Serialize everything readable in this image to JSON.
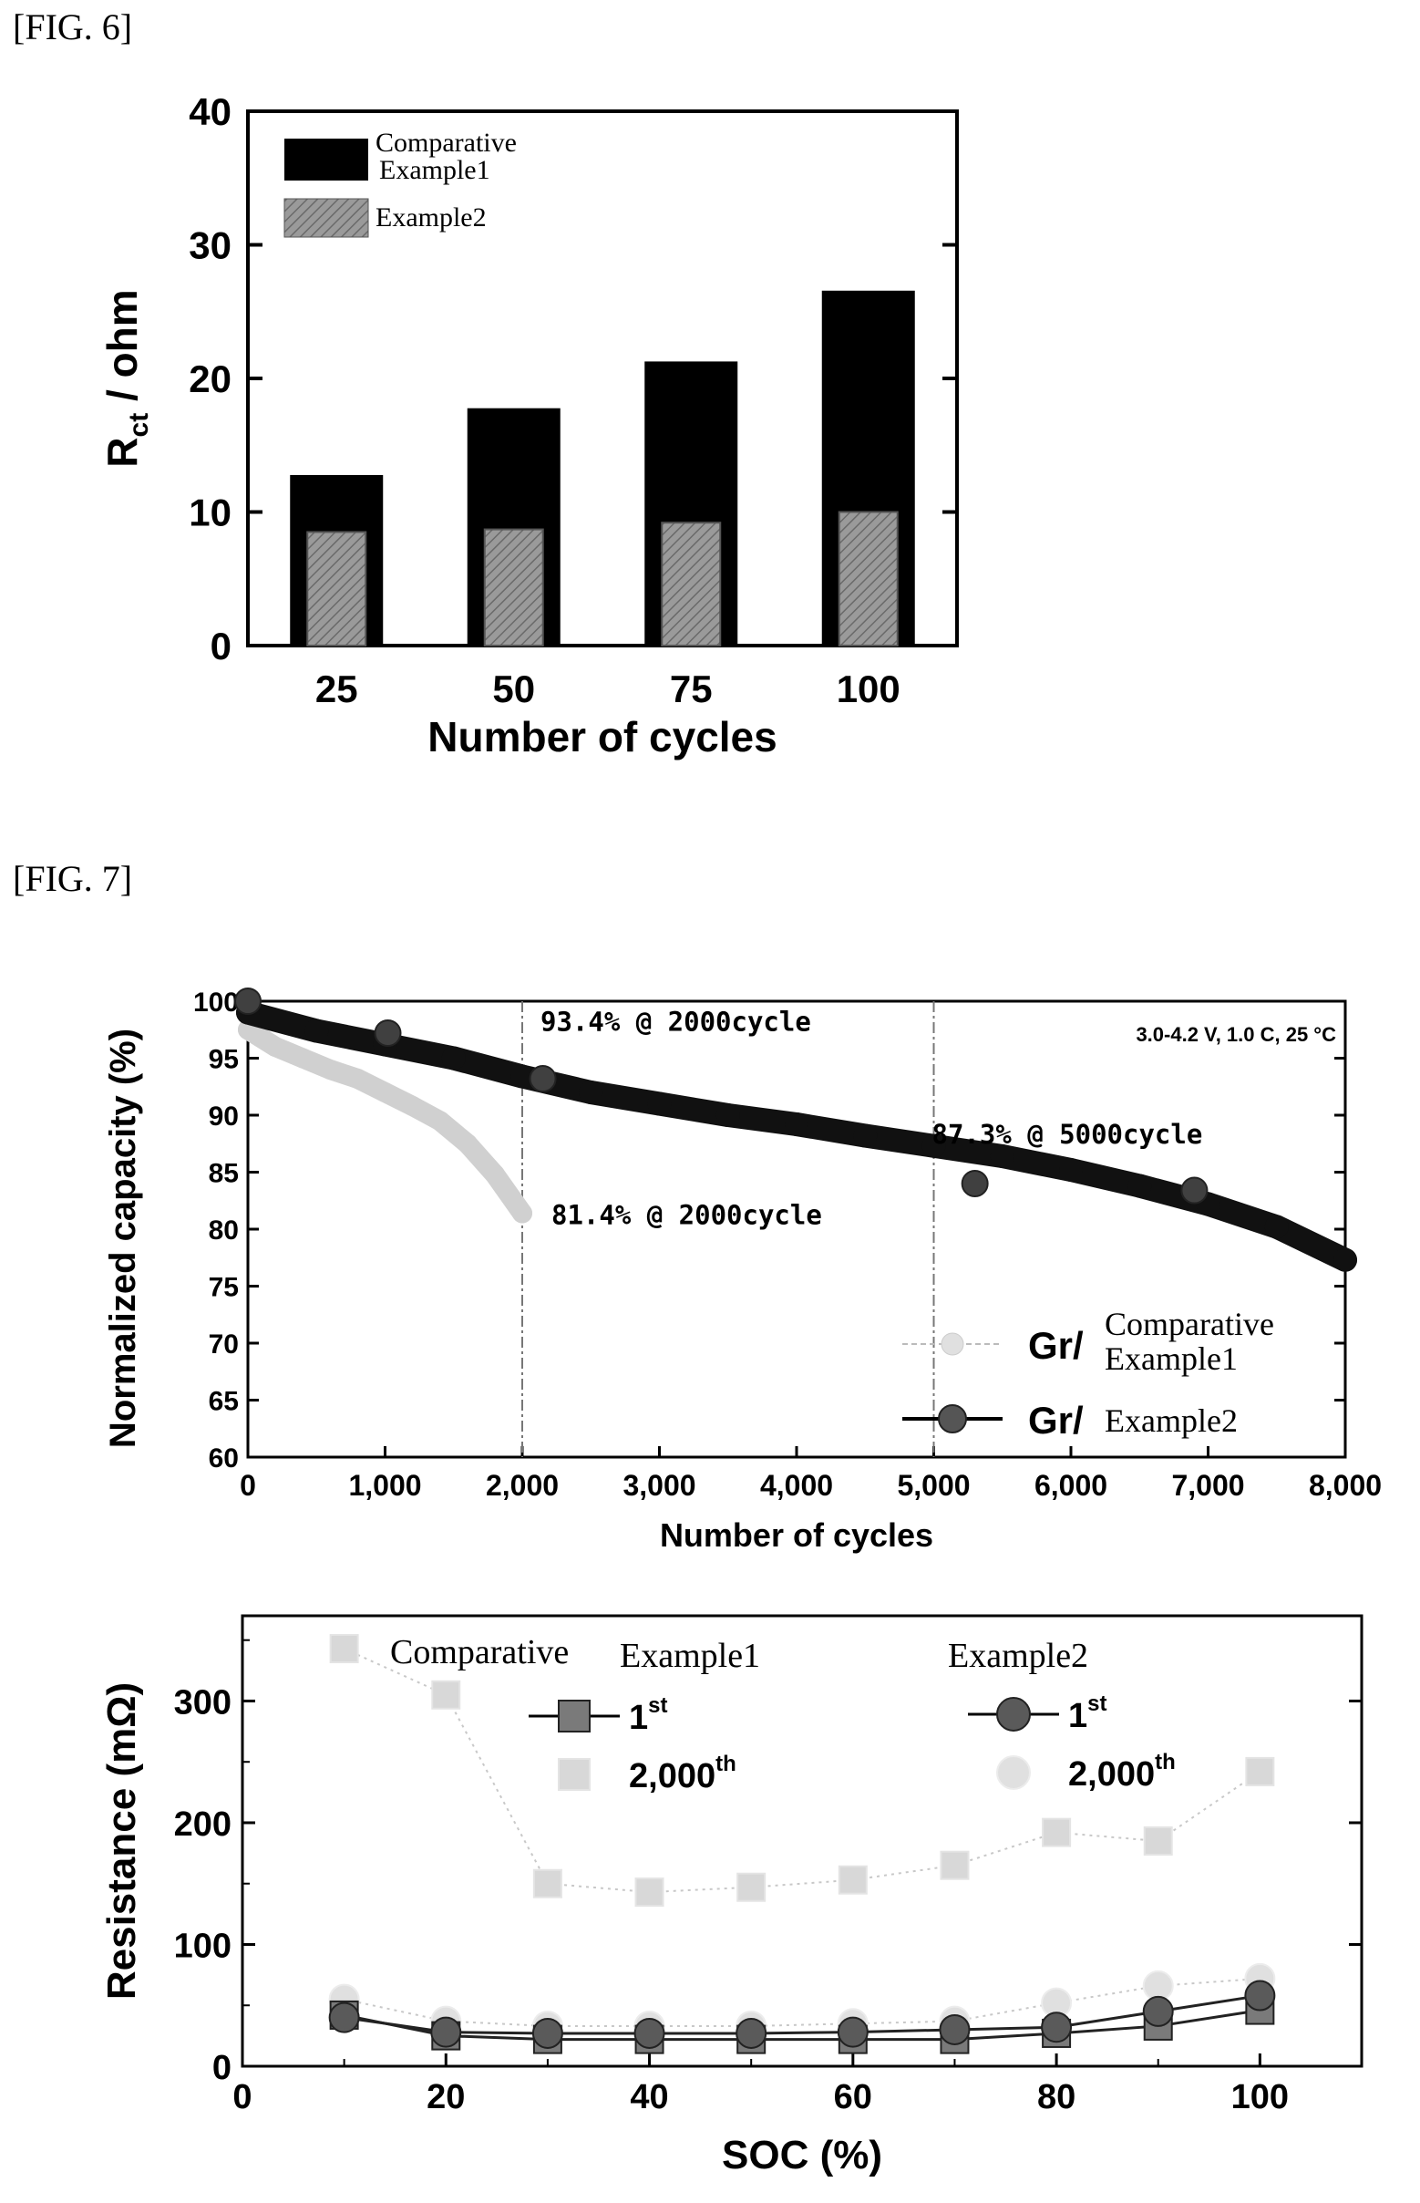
{
  "figures": [
    {
      "label": "[FIG. 6]"
    },
    {
      "label": "[FIG. 7]"
    }
  ],
  "chart_data": [
    {
      "type": "bar",
      "xlabel": "Number of cycles",
      "ylabel_main": "R",
      "ylabel_sub": "ct",
      "ylabel_rest": " / ohm",
      "ylim": [
        0,
        40
      ],
      "yticks": [
        0,
        10,
        20,
        30,
        40
      ],
      "categories": [
        "25",
        "50",
        "75",
        "100"
      ],
      "series": [
        {
          "name": "Comparative Example1",
          "name_line1": "Comparative",
          "name_line2": "Example1",
          "color": "#000000",
          "values": [
            12.7,
            17.7,
            21.2,
            26.5
          ]
        },
        {
          "name": "Example2",
          "color": "#9a9a9a",
          "values": [
            8.5,
            8.7,
            9.2,
            10.0
          ]
        }
      ],
      "legend": "top-left"
    },
    {
      "type": "scatter",
      "xlabel": "Number of cycles",
      "ylabel": "Normalized capacity (%)",
      "xlim": [
        0,
        8000
      ],
      "ylim": [
        60,
        100
      ],
      "xticks": [
        0,
        1000,
        2000,
        3000,
        4000,
        5000,
        6000,
        7000,
        8000
      ],
      "xtick_labels": [
        "0",
        "1,000",
        "2,000",
        "3,000",
        "4,000",
        "5,000",
        "6,000",
        "7,000",
        "8,000"
      ],
      "yticks": [
        60,
        65,
        70,
        75,
        80,
        85,
        90,
        95,
        100
      ],
      "condition": "3.0-4.2 V, 1.0 C, 25 °C",
      "annotations": [
        {
          "text": "93.4% @ 2000cycle",
          "x": 2000,
          "y": 93.4
        },
        {
          "text": "87.3% @ 5000cycle",
          "x": 5000,
          "y": 87.3
        },
        {
          "text": "81.4% @ 2000cycle",
          "x": 2000,
          "y": 81.4
        }
      ],
      "vlines": [
        2000,
        5000
      ],
      "series": [
        {
          "name": "Gr/ Comparative Example1",
          "prefix": "Gr/",
          "name_line1": "Comparative",
          "name_line2": "Example1",
          "color": "#d0d0d0",
          "x": [
            0,
            200,
            400,
            600,
            800,
            1000,
            1200,
            1400,
            1600,
            1800,
            2000
          ],
          "y": [
            97.5,
            96.0,
            95.0,
            94.0,
            93.2,
            92.0,
            90.8,
            89.5,
            87.5,
            84.8,
            81.4
          ]
        },
        {
          "name": "Gr/ Example2",
          "prefix": "Gr/",
          "name_line1": "Example2",
          "color": "#404040",
          "x": [
            0,
            500,
            1000,
            1500,
            2000,
            2500,
            3000,
            3500,
            4000,
            4500,
            5000,
            5500,
            6000,
            6500,
            7000,
            7500,
            8000
          ],
          "y": [
            99.0,
            97.4,
            96.2,
            95.0,
            93.4,
            92.0,
            91.0,
            90.0,
            89.2,
            88.2,
            87.3,
            86.4,
            85.2,
            83.8,
            82.2,
            80.2,
            77.3
          ],
          "outlier_markers": [
            {
              "x": 0,
              "y": 100.0
            },
            {
              "x": 1020,
              "y": 97.2
            },
            {
              "x": 2150,
              "y": 93.2
            },
            {
              "x": 5300,
              "y": 84.0
            },
            {
              "x": 6900,
              "y": 83.4
            }
          ]
        }
      ],
      "legend": "bottom-right"
    },
    {
      "type": "line",
      "xlabel": "SOC (%)",
      "ylabel": "Resistance (mΩ)",
      "xlim": [
        0,
        110
      ],
      "ylim": [
        0,
        370
      ],
      "xticks": [
        0,
        20,
        40,
        60,
        80,
        100
      ],
      "yticks": [
        0,
        100,
        200,
        300
      ],
      "group_labels": [
        "Comparative",
        "Example1",
        "Example2"
      ],
      "legend_labels": [
        {
          "text": "1",
          "sup": "st"
        },
        {
          "text": "2,000",
          "sup": "th"
        },
        {
          "text": "1",
          "sup": "st"
        },
        {
          "text": "2,000",
          "sup": "th"
        }
      ],
      "x": [
        10,
        20,
        30,
        40,
        50,
        60,
        70,
        80,
        90,
        100
      ],
      "series": [
        {
          "group": "Comparative Example1",
          "cycle": "1st",
          "marker": "square",
          "color": "#7a7a7a",
          "y": [
            42,
            25,
            22,
            22,
            22,
            22,
            22,
            27,
            33,
            46
          ]
        },
        {
          "group": "Comparative Example1",
          "cycle": "2,000th",
          "marker": "square",
          "color": "#d8d8d8",
          "y": [
            343,
            305,
            150,
            143,
            147,
            153,
            165,
            192,
            185,
            242
          ]
        },
        {
          "group": "Example2",
          "cycle": "1st",
          "marker": "circle",
          "color": "#5a5a5a",
          "y": [
            40,
            28,
            27,
            27,
            27,
            28,
            30,
            32,
            45,
            58
          ]
        },
        {
          "group": "Example2",
          "cycle": "2,000th",
          "marker": "circle",
          "color": "#e0e0e0",
          "y": [
            55,
            37,
            33,
            33,
            33,
            35,
            37,
            52,
            66,
            72
          ]
        }
      ]
    }
  ]
}
